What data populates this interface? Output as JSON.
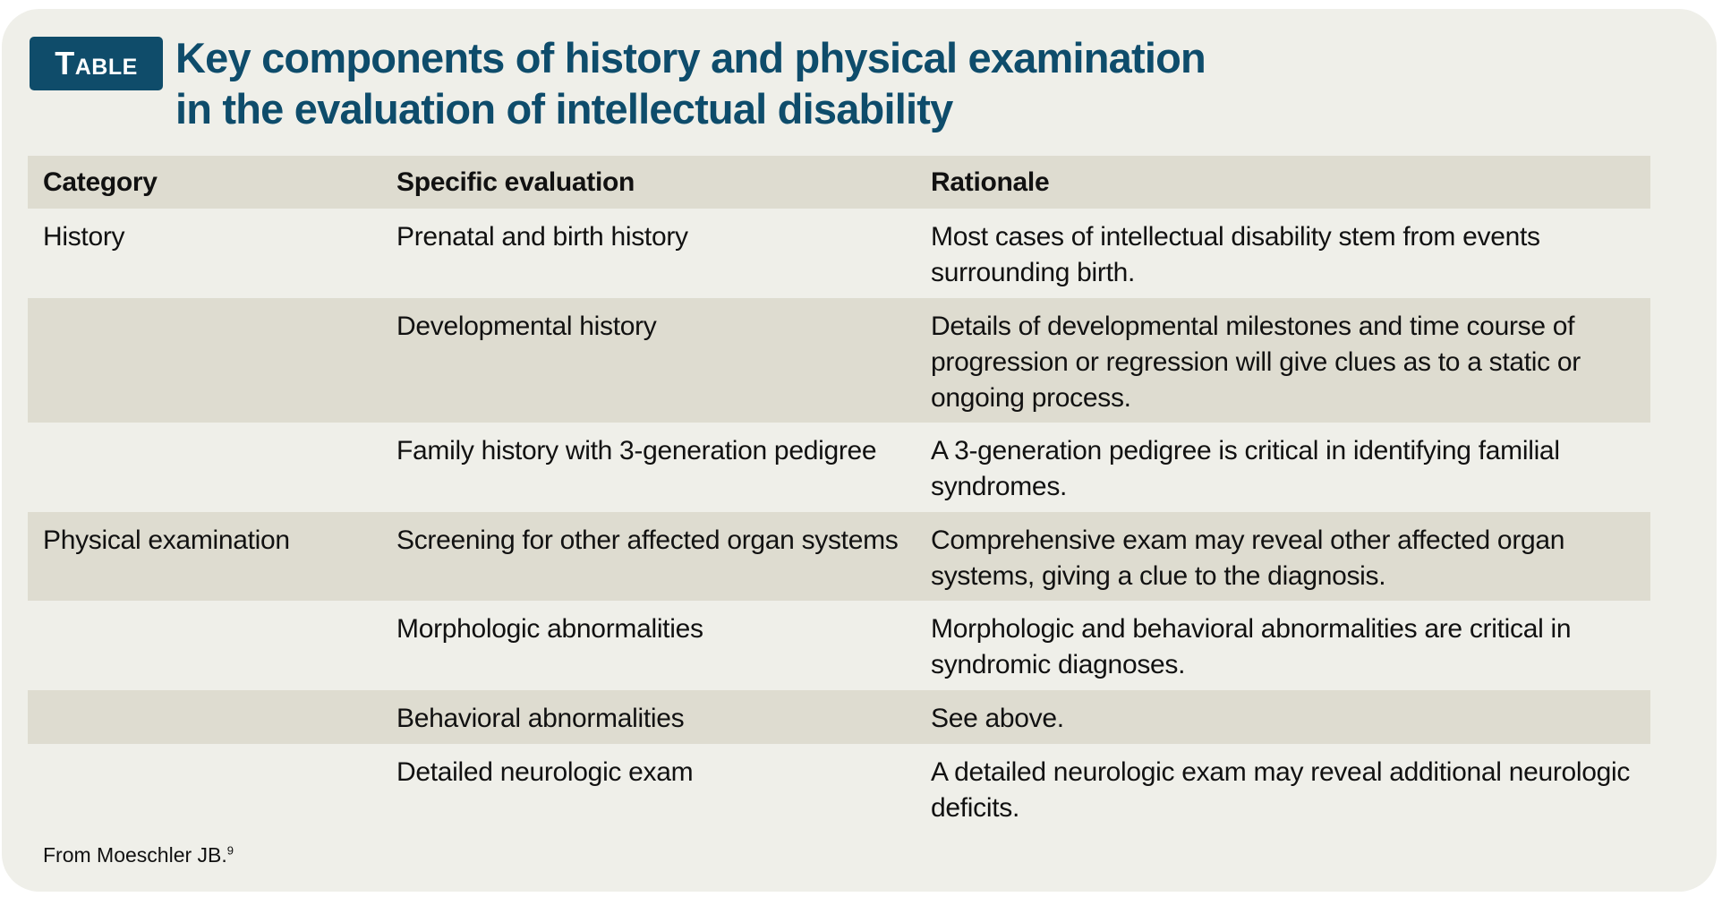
{
  "label": "Table",
  "title_line1": "Key components of history and physical examination",
  "title_line2": "in the evaluation of intellectual disability",
  "headers": [
    "Category",
    "Specific evaluation",
    "Rationale"
  ],
  "rows": [
    {
      "category": "History",
      "evaluation": "Prenatal and birth history",
      "rationale": "Most cases of intellectual disability stem from events surrounding birth."
    },
    {
      "category": "",
      "evaluation": "Developmental history",
      "rationale": "Details of developmental milestones and time course of progression or regression will give clues as to a static or ongoing process."
    },
    {
      "category": "",
      "evaluation": "Family history with 3-generation pedigree",
      "rationale": "A 3-generation pedigree is critical in identifying familial syndromes."
    },
    {
      "category": "Physical examination",
      "evaluation": "Screening for other affected organ systems",
      "rationale": "Comprehensive exam may reveal other affected organ systems, giving a clue to the diagnosis."
    },
    {
      "category": "",
      "evaluation": "Morphologic abnormalities",
      "rationale": "Morphologic and behavioral abnormalities are critical in syndromic diagnoses."
    },
    {
      "category": "",
      "evaluation": "Behavioral abnormalities",
      "rationale": "See above."
    },
    {
      "category": "",
      "evaluation": "Detailed neurologic exam",
      "rationale": "A detailed neurologic exam may reveal additional neurologic deficits."
    }
  ],
  "footer": {
    "text": "From Moeschler JB.",
    "superscript": "9"
  },
  "colors": {
    "accent": "#0f4c6a",
    "card": "#efefe9",
    "shade": "#dedcd0"
  }
}
